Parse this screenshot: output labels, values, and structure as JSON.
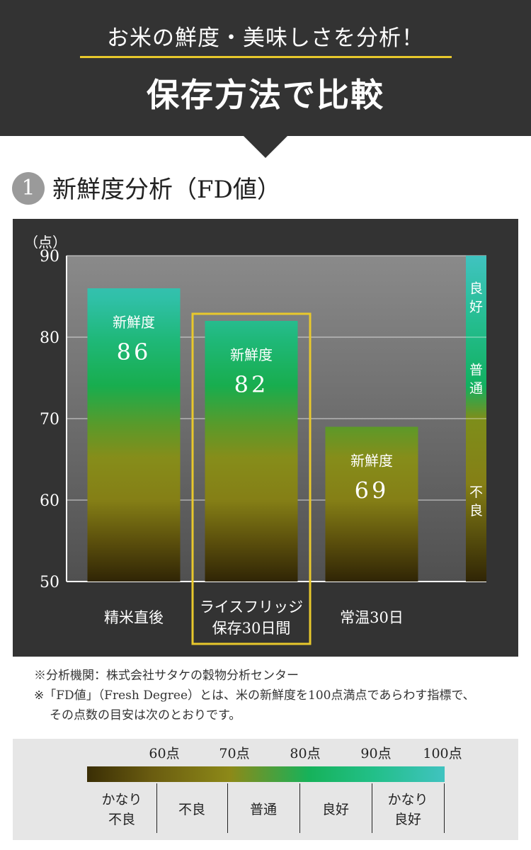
{
  "header": {
    "subtitle": "お米の鮮度・美味しさを分析！",
    "title": "保存方法で比較",
    "accent_color": "#e8c82c",
    "bg_color": "#333333"
  },
  "section": {
    "number": "1",
    "title": "新鮮度分析（FD値）"
  },
  "chart_data": {
    "type": "bar",
    "ylabel": "（点）",
    "ylim": [
      50,
      90
    ],
    "yticks": [
      90,
      80,
      70,
      60,
      50
    ],
    "grid": true,
    "bar_label": "新鮮度",
    "categories": [
      "精米直後",
      "ライスフリッジ\n保存30日間",
      "常温30日"
    ],
    "values": [
      86,
      82,
      69
    ],
    "highlight_index": 1,
    "highlight_color": "#e8c82c",
    "good_threshold": 70,
    "scale_bands": [
      {
        "label": "良好",
        "from": 80,
        "to": 90
      },
      {
        "label": "普通",
        "from": 70,
        "to": 80
      },
      {
        "label": "不良",
        "from": 50,
        "to": 70
      }
    ]
  },
  "notes": {
    "line1": "※分析機関：株式会社サタケの穀物分析センター",
    "line2": "※「FD値」（Fresh Degree）とは、米の新鮮度を100点満点であらわす指標で、",
    "line3": "その点数の目安は次のとおりです。"
  },
  "legend": {
    "ticks": [
      "60点",
      "70点",
      "80点",
      "90点",
      "100点"
    ],
    "categories": [
      "かなり\n不良",
      "不良",
      "普通",
      "良好",
      "かなり\n良好"
    ]
  }
}
